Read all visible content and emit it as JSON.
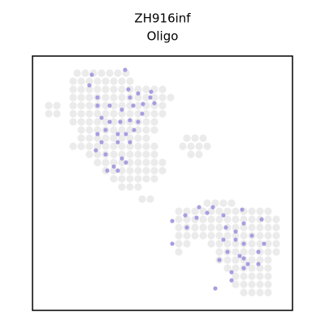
{
  "chart_data": {
    "type": "scatter",
    "title": "ZH916inf",
    "subtitle": "Oligo",
    "xlim": [
      0,
      320
    ],
    "ylim": [
      0,
      313
    ],
    "series": [
      {
        "color": "#ebebeb",
        "x": [
          55,
          65,
          75,
          85,
          95,
          105,
          115,
          50,
          60,
          70,
          80,
          90,
          100,
          110,
          120,
          50,
          60,
          70,
          80,
          90,
          100,
          110,
          120,
          130,
          140,
          150,
          160,
          50,
          60,
          70,
          80,
          90,
          100,
          110,
          120,
          130,
          140,
          150,
          160,
          170,
          20,
          30,
          50,
          60,
          70,
          80,
          90,
          100,
          110,
          120,
          130,
          140,
          150,
          160,
          20,
          30,
          50,
          60,
          70,
          80,
          90,
          100,
          110,
          120,
          130,
          140,
          150,
          160,
          50,
          60,
          70,
          80,
          90,
          100,
          110,
          120,
          130,
          140,
          150,
          60,
          70,
          80,
          90,
          100,
          110,
          120,
          130,
          140,
          150,
          60,
          70,
          80,
          90,
          100,
          110,
          120,
          130,
          140,
          190,
          200,
          210,
          50,
          60,
          70,
          80,
          90,
          100,
          110,
          120,
          130,
          140,
          150,
          185,
          195,
          205,
          215,
          70,
          80,
          90,
          100,
          110,
          120,
          130,
          140,
          150,
          195,
          205,
          80,
          90,
          100,
          110,
          120,
          130,
          140,
          150,
          160,
          90,
          100,
          110,
          120,
          130,
          140,
          150,
          160,
          100,
          110,
          120,
          130,
          140,
          150,
          110,
          120,
          130,
          135,
          145,
          215,
          225,
          235,
          245,
          180,
          190,
          200,
          210,
          220,
          230,
          240,
          250,
          260,
          270,
          280,
          290,
          180,
          190,
          200,
          210,
          220,
          230,
          240,
          250,
          260,
          270,
          280,
          290,
          300,
          180,
          190,
          200,
          210,
          220,
          230,
          240,
          250,
          260,
          270,
          280,
          290,
          300,
          180,
          190,
          200,
          210,
          220,
          230,
          240,
          250,
          260,
          270,
          280,
          290,
          300,
          180,
          190,
          220,
          230,
          240,
          250,
          260,
          270,
          280,
          290,
          300,
          180,
          230,
          240,
          250,
          260,
          270,
          280,
          290,
          300,
          230,
          240,
          250,
          260,
          270,
          280,
          290,
          240,
          250,
          260,
          270,
          280,
          290,
          250,
          260,
          270,
          280,
          290,
          250,
          260,
          270,
          280,
          290,
          260,
          270,
          280,
          290
        ],
        "y": [
          292,
          292,
          292,
          292,
          292,
          292,
          292,
          282,
          282,
          282,
          282,
          282,
          282,
          282,
          282,
          272,
          272,
          272,
          272,
          272,
          272,
          272,
          272,
          272,
          272,
          272,
          272,
          262,
          262,
          262,
          262,
          262,
          262,
          262,
          262,
          262,
          262,
          262,
          262,
          262,
          252,
          252,
          252,
          252,
          252,
          252,
          252,
          252,
          252,
          252,
          252,
          252,
          252,
          252,
          242,
          242,
          242,
          242,
          242,
          242,
          242,
          242,
          242,
          242,
          242,
          242,
          242,
          242,
          232,
          232,
          232,
          232,
          232,
          232,
          232,
          232,
          232,
          232,
          232,
          222,
          222,
          222,
          222,
          222,
          222,
          222,
          222,
          222,
          222,
          212,
          212,
          212,
          212,
          212,
          212,
          212,
          212,
          212,
          212,
          212,
          212,
          202,
          202,
          202,
          202,
          202,
          202,
          202,
          202,
          202,
          202,
          202,
          202,
          202,
          202,
          202,
          192,
          192,
          192,
          192,
          192,
          192,
          192,
          192,
          192,
          192,
          192,
          182,
          182,
          182,
          182,
          182,
          182,
          182,
          182,
          182,
          172,
          172,
          172,
          172,
          172,
          172,
          172,
          172,
          162,
          162,
          162,
          162,
          162,
          162,
          152,
          152,
          152,
          137,
          137,
          132,
          132,
          132,
          132,
          122,
          122,
          122,
          122,
          122,
          122,
          122,
          122,
          122,
          122,
          122,
          122,
          112,
          112,
          112,
          112,
          112,
          112,
          112,
          112,
          112,
          112,
          112,
          112,
          112,
          102,
          102,
          102,
          102,
          102,
          102,
          102,
          102,
          102,
          102,
          102,
          102,
          102,
          92,
          92,
          92,
          92,
          92,
          92,
          92,
          92,
          92,
          92,
          92,
          92,
          92,
          82,
          82,
          82,
          82,
          82,
          82,
          82,
          82,
          82,
          82,
          82,
          72,
          72,
          72,
          72,
          72,
          72,
          72,
          72,
          72,
          62,
          62,
          62,
          62,
          62,
          62,
          62,
          52,
          52,
          52,
          52,
          52,
          52,
          42,
          42,
          42,
          42,
          42,
          32,
          32,
          32,
          32,
          32,
          22,
          22,
          22,
          22
        ]
      },
      {
        "color": "#a99de0",
        "x": [
          73,
          114,
          118,
          130,
          146,
          150,
          136,
          124,
          110,
          95,
          80,
          85,
          95,
          108,
          120,
          130,
          125,
          115,
          105,
          90,
          80,
          85,
          78,
          90,
          105,
          120,
          110,
          100,
          92,
          105,
          115,
          80,
          70,
          135,
          145,
          120,
          172,
          188,
          202,
          222,
          235,
          258,
          260,
          282,
          238,
          250,
          270,
          285,
          278,
          260,
          250,
          235,
          240,
          255,
          265,
          278,
          260,
          245,
          230,
          172,
          190,
          225,
          245,
          205,
          215,
          260
        ],
        "y": [
          290,
          296,
          272,
          267,
          269,
          255,
          254,
          252,
          247,
          252,
          252,
          237,
          232,
          232,
          234,
          232,
          222,
          217,
          217,
          222,
          217,
          207,
          197,
          192,
          207,
          207,
          187,
          177,
          172,
          172,
          182,
          262,
          277,
          242,
          262,
          262,
          110,
          117,
          114,
          127,
          117,
          124,
          107,
          112,
          102,
          97,
          92,
          82,
          72,
          82,
          87,
          87,
          72,
          67,
          57,
          57,
          52,
          47,
          62,
          82,
          102,
          27,
          37,
          127,
          120,
          64
        ]
      }
    ]
  }
}
